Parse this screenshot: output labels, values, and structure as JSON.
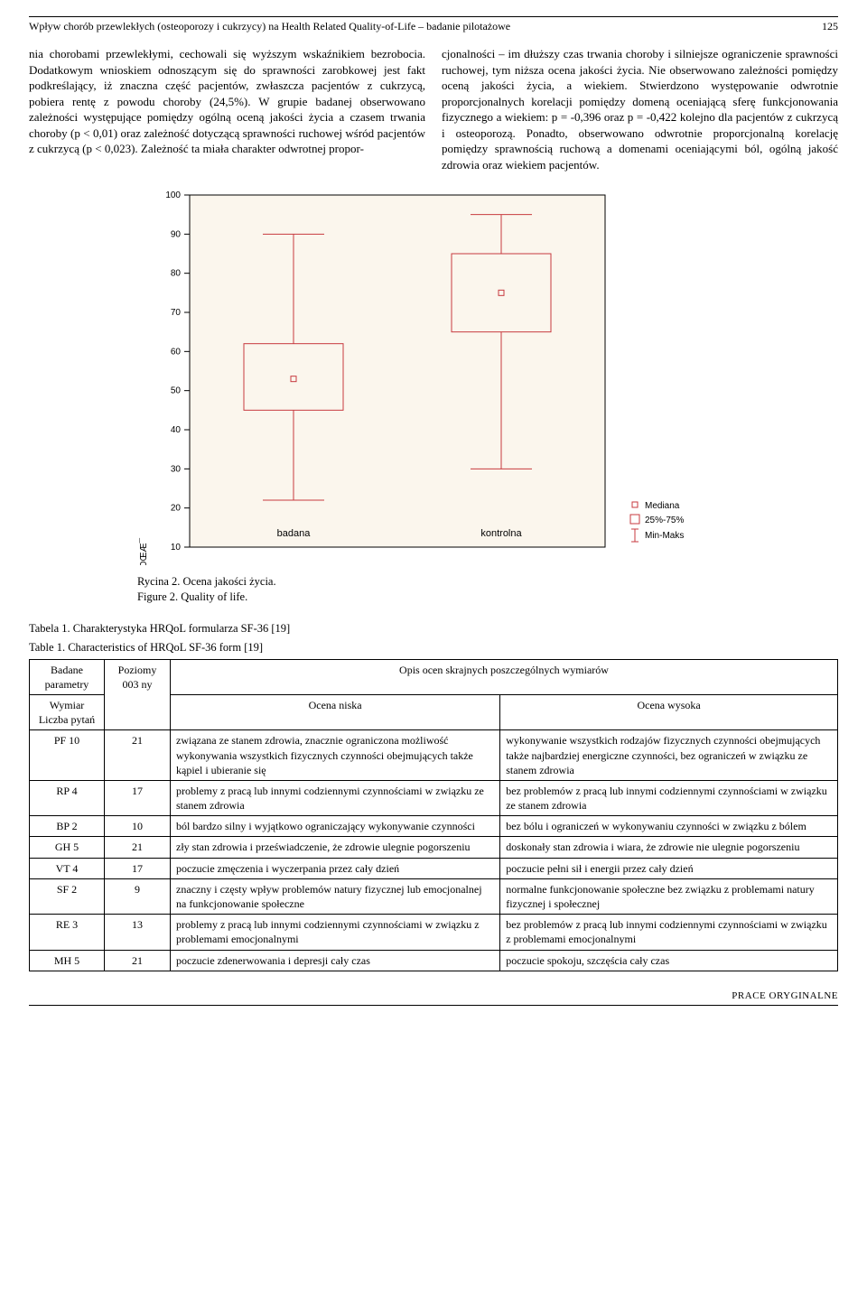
{
  "header": {
    "running_title": "Wpływ chorób przewlekłych (osteoporozy i cukrzycy) na Health Related Quality-of-Life – badanie pilotażowe",
    "page_number": "125"
  },
  "body": {
    "left_col": "nia chorobami przewlekłymi, cechowali się wyższym wskaźnikiem bezrobocia.\nDodatkowym wnioskiem odnoszącym się do sprawności zarobkowej jest fakt podkreślający, iż znaczna część pacjentów, zwłaszcza pacjentów z cukrzycą, pobiera rentę z powodu choroby (24,5%).\nW grupie badanej obserwowano zależności występujące pomiędzy ogólną oceną jakości życia a czasem trwania choroby (p < 0,01) oraz zależność dotyczącą sprawności ruchowej wśród pacjentów z cukrzycą (p < 0,023). Zależność ta miała charakter odwrotnej propor-",
    "right_col": "cjonalności – im dłuższy czas trwania choroby i silniejsze ograniczenie sprawności ruchowej, tym niższa ocena jakości życia. Nie obserwowano zależności pomiędzy oceną jakości życia, a wiekiem.\nStwierdzono występowanie odwrotnie proporcjonalnych korelacji pomiędzy domeną oceniającą sferę funkcjonowania fizycznego a wiekiem: p = -0,396 oraz p = -0,422 kolejno dla pacjentów z cukrzycą i osteoporozą. Ponadto, obserwowano odwrotnie proporcjonalną korelację pomiędzy sprawnością ruchową a domenami oceniającymi ból, ogólną jakość zdrowia oraz wiekiem pacjentów."
  },
  "chart": {
    "type": "boxplot",
    "ylabel": "OGÓLNA JAKOŒÆ¯",
    "ymin": 10,
    "ymax": 100,
    "ytick_step": 10,
    "yticks": [
      10,
      20,
      30,
      40,
      50,
      60,
      70,
      80,
      90,
      100
    ],
    "plot_bg": "#fbf6ed",
    "box_stroke": "#c73a3f",
    "whisker_stroke": "#c73a3f",
    "marker_stroke": "#c73a3f",
    "tick_font_size": 10,
    "label_font_size": 10,
    "categories": [
      "badana",
      "kontrolna"
    ],
    "boxes": [
      {
        "min": 22,
        "q1": 45,
        "median": 53,
        "q3": 62,
        "max": 90
      },
      {
        "min": 30,
        "q1": 65,
        "median": 75,
        "q3": 85,
        "max": 95
      }
    ],
    "legend": {
      "median": "Mediana",
      "iqr": "25%-75%",
      "minmax": "Min-Maks"
    }
  },
  "caption": {
    "line1": "Rycina 2. Ocena jakości życia.",
    "line2": "Figure 2. Quality of life."
  },
  "table": {
    "title1": "Tabela 1. Charakterystyka HRQoL formularza SF-36 [19]",
    "title2": "Table 1. Characteristics of HRQoL SF-36 form [19]",
    "headers": {
      "col_group": "Badane parametry",
      "wymiar": "Wymiar Liczba pytań",
      "poziomy": "Poziomy 003 ny",
      "opis": "Opis ocen skrajnych poszczególnych wymiarów",
      "niska": "Ocena niska",
      "wysoka": "Ocena wysoka"
    },
    "rows": [
      {
        "dim": "PF 10",
        "lvl": "21",
        "low": "związana ze stanem zdrowia, znacznie ograniczona możliwość wykonywania wszystkich fizycznych czynności obejmujących także kąpiel i ubieranie się",
        "high": "wykonywanie wszystkich rodzajów fizycznych czynności obejmujących także najbardziej energiczne czynności, bez ograniczeń w związku ze stanem zdrowia"
      },
      {
        "dim": "RP 4",
        "lvl": "17",
        "low": "problemy z pracą lub innymi codziennymi czynnościami w związku ze stanem zdrowia",
        "high": "bez problemów z pracą lub innymi codziennymi czynnościami w związku ze stanem zdrowia"
      },
      {
        "dim": "BP 2",
        "lvl": "10",
        "low": "ból bardzo silny i wyjątkowo ograniczający wykonywanie czynności",
        "high": "bez bólu i ograniczeń w wykonywaniu czynności w związku z bólem"
      },
      {
        "dim": "GH 5",
        "lvl": "21",
        "low": "zły stan zdrowia i przeświadczenie, że zdrowie ulegnie pogorszeniu",
        "high": "doskonały stan zdrowia i wiara, że zdrowie nie ulegnie pogorszeniu"
      },
      {
        "dim": "VT 4",
        "lvl": "17",
        "low": "poczucie zmęczenia i wyczerpania przez cały dzień",
        "high": "poczucie pełni sił i energii przez cały dzień"
      },
      {
        "dim": "SF 2",
        "lvl": "9",
        "low": "znaczny i częsty wpływ problemów natury fizycznej lub emocjonalnej na funkcjonowanie społeczne",
        "high": "normalne funkcjonowanie społeczne bez związku z problemami natury fizycznej i społecznej"
      },
      {
        "dim": "RE 3",
        "lvl": "13",
        "low": "problemy z pracą lub innymi codziennymi czynnościami w związku z problemami emocjonalnymi",
        "high": "bez problemów z pracą lub innymi codziennymi czynnościami w związku z problemami emocjonalnymi"
      },
      {
        "dim": "MH 5",
        "lvl": "21",
        "low": "poczucie zdenerwowania i depresji cały czas",
        "high": "poczucie spokoju, szczęścia cały czas"
      }
    ]
  },
  "footer": "PRACE ORYGINALNE"
}
